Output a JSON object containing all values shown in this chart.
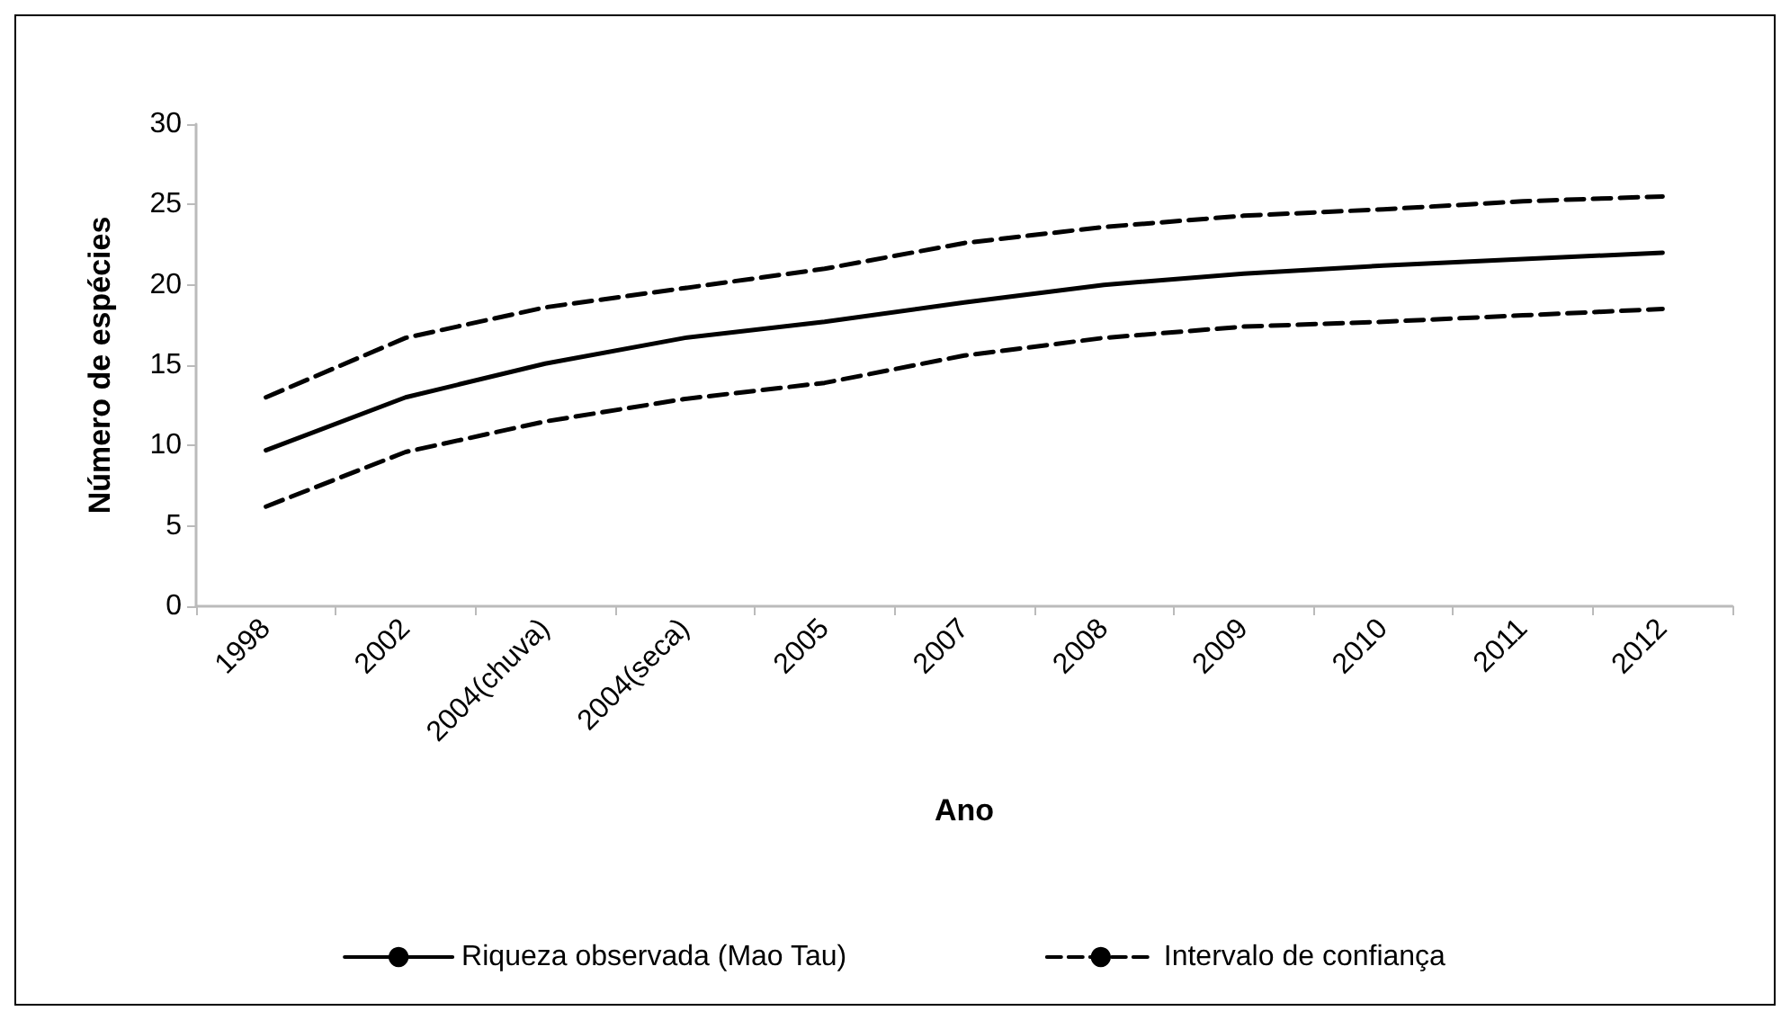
{
  "chart_data": {
    "type": "line",
    "xlabel": "Ano",
    "ylabel": "Número de espécies",
    "categories": [
      "1998",
      "2002",
      "2004(chuva)",
      "2004(seca)",
      "2005",
      "2007",
      "2008",
      "2009",
      "2010",
      "2011",
      "2012"
    ],
    "series": [
      {
        "name": "Riqueza observada (Mao Tau)",
        "color": "#000000",
        "line_style": "solid",
        "values": [
          9.7,
          13.0,
          15.1,
          16.7,
          17.7,
          18.9,
          20.0,
          20.7,
          21.2,
          21.6,
          22.0
        ]
      },
      {
        "name": "Intervalo de confiança",
        "color": "#000000",
        "line_style": "dashed",
        "values": [
          13.0,
          16.7,
          18.6,
          19.8,
          21.0,
          22.6,
          23.6,
          24.3,
          24.7,
          25.2,
          25.5
        ]
      },
      {
        "color": "#000000",
        "line_style": "dashed",
        "values": [
          6.2,
          9.6,
          11.5,
          12.9,
          13.9,
          15.6,
          16.7,
          17.4,
          17.7,
          18.1,
          18.5
        ]
      }
    ],
    "ylim": [
      0,
      30
    ],
    "yticks": [
      0,
      5,
      10,
      15,
      20,
      25,
      30
    ],
    "grid": false,
    "legend": "bottom",
    "marker": "none"
  }
}
